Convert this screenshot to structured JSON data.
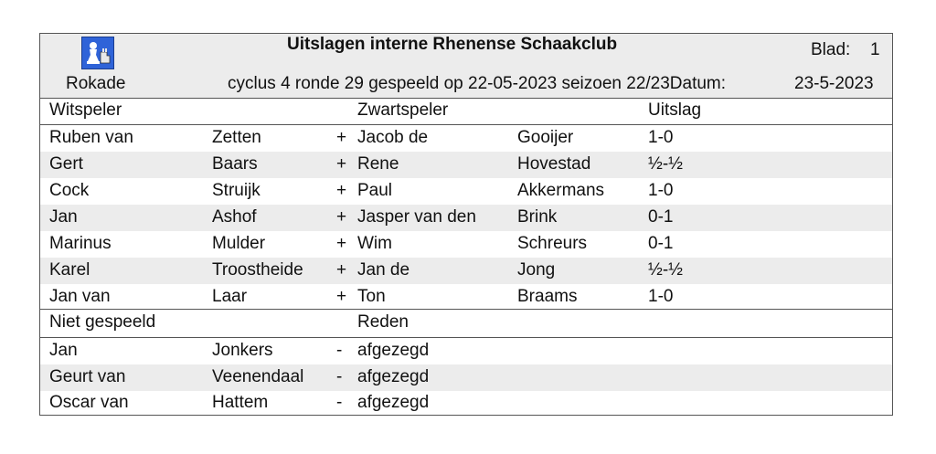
{
  "header": {
    "club": "Rokade",
    "title": "Uitslagen interne Rhenense Schaakclub",
    "blad_label": "Blad:",
    "blad_value": "1",
    "subtitle": "cyclus 4 ronde 29 gespeeld op 22-05-2023 seizoen 22/23Datum:",
    "date_value": "23-5-2023"
  },
  "results": {
    "headers": {
      "white": "Witspeler",
      "black": "Zwartspeler",
      "result": "Uitslag"
    },
    "rows": [
      {
        "white_first": "Ruben van",
        "white_last": "Zetten",
        "sign": "+",
        "black_first": "Jacob de",
        "black_last": "Gooijer",
        "result": "1-0"
      },
      {
        "white_first": "Gert",
        "white_last": "Baars",
        "sign": "+",
        "black_first": "Rene",
        "black_last": "Hovestad",
        "result": "½-½"
      },
      {
        "white_first": "Cock",
        "white_last": "Struijk",
        "sign": "+",
        "black_first": "Paul",
        "black_last": "Akkermans",
        "result": "1-0"
      },
      {
        "white_first": "Jan",
        "white_last": "Ashof",
        "sign": "+",
        "black_first": "Jasper van den",
        "black_last": "Brink",
        "result": "0-1"
      },
      {
        "white_first": "Marinus",
        "white_last": "Mulder",
        "sign": "+",
        "black_first": "Wim",
        "black_last": "Schreurs",
        "result": "0-1"
      },
      {
        "white_first": "Karel",
        "white_last": "Troostheide",
        "sign": "+",
        "black_first": "Jan de",
        "black_last": "Jong",
        "result": "½-½"
      },
      {
        "white_first": "Jan van",
        "white_last": "Laar",
        "sign": "+",
        "black_first": "Ton",
        "black_last": "Braams",
        "result": "1-0"
      }
    ]
  },
  "not_played": {
    "headers": {
      "label": "Niet gespeeld",
      "reason": "Reden"
    },
    "rows": [
      {
        "first": "Jan",
        "last": "Jonkers",
        "sign": "-",
        "reason": "afgezegd"
      },
      {
        "first": "Geurt van",
        "last": "Veenendaal",
        "sign": "-",
        "reason": "afgezegd"
      },
      {
        "first": "Oscar van",
        "last": "Hattem",
        "sign": "-",
        "reason": "afgezegd"
      }
    ]
  }
}
